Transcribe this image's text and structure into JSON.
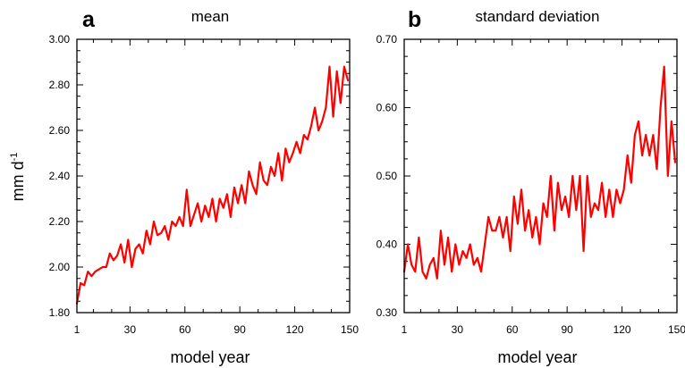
{
  "y_axis_label": {
    "main": "mm d",
    "sup": "-1"
  },
  "chart_data": [
    {
      "type": "line",
      "panel": "a",
      "title": "mean",
      "xlabel": "model year",
      "ylabel": "mm d-1",
      "xlim": [
        1,
        150
      ],
      "ylim": [
        1.8,
        3.0
      ],
      "xticks": [
        1,
        30,
        60,
        90,
        120,
        150
      ],
      "yticks": [
        1.8,
        2.0,
        2.2,
        2.4,
        2.6,
        2.8,
        3.0
      ],
      "ytick_labels": [
        "1.80",
        "2.00",
        "2.20",
        "2.40",
        "2.60",
        "2.80",
        "3.00"
      ],
      "color": "#ff0000",
      "x": [
        1,
        3,
        5,
        7,
        9,
        11,
        13,
        15,
        17,
        19,
        21,
        23,
        25,
        27,
        29,
        31,
        33,
        35,
        37,
        39,
        41,
        43,
        45,
        47,
        49,
        51,
        53,
        55,
        57,
        59,
        61,
        63,
        65,
        67,
        69,
        71,
        73,
        75,
        77,
        79,
        81,
        83,
        85,
        87,
        89,
        91,
        93,
        95,
        97,
        99,
        101,
        103,
        105,
        107,
        109,
        111,
        113,
        115,
        117,
        119,
        121,
        123,
        125,
        127,
        129,
        131,
        133,
        135,
        137,
        139,
        141,
        143,
        145,
        147,
        149
      ],
      "values": [
        1.84,
        1.93,
        1.92,
        1.98,
        1.96,
        1.98,
        1.99,
        2.0,
        2.0,
        2.06,
        2.03,
        2.05,
        2.1,
        2.02,
        2.12,
        2.0,
        2.08,
        2.1,
        2.06,
        2.16,
        2.1,
        2.2,
        2.14,
        2.15,
        2.18,
        2.12,
        2.2,
        2.18,
        2.22,
        2.18,
        2.34,
        2.18,
        2.23,
        2.28,
        2.2,
        2.27,
        2.22,
        2.3,
        2.2,
        2.3,
        2.26,
        2.32,
        2.22,
        2.35,
        2.28,
        2.36,
        2.28,
        2.42,
        2.36,
        2.32,
        2.46,
        2.38,
        2.36,
        2.44,
        2.4,
        2.5,
        2.38,
        2.52,
        2.46,
        2.5,
        2.55,
        2.5,
        2.58,
        2.56,
        2.62,
        2.7,
        2.6,
        2.64,
        2.7,
        2.88,
        2.66,
        2.86,
        2.72,
        2.88,
        2.82
      ]
    },
    {
      "type": "line",
      "panel": "b",
      "title": "standard deviation",
      "xlabel": "model year",
      "xlim": [
        1,
        150
      ],
      "ylim": [
        0.3,
        0.7
      ],
      "xticks": [
        1,
        30,
        60,
        90,
        120,
        150
      ],
      "yticks": [
        0.3,
        0.4,
        0.5,
        0.6,
        0.7
      ],
      "ytick_labels": [
        "0.30",
        "0.40",
        "0.50",
        "0.60",
        "0.70"
      ],
      "color": "#ff0000",
      "x": [
        1,
        3,
        5,
        7,
        9,
        11,
        13,
        15,
        17,
        19,
        21,
        23,
        25,
        27,
        29,
        31,
        33,
        35,
        37,
        39,
        41,
        43,
        45,
        47,
        49,
        51,
        53,
        55,
        57,
        59,
        61,
        63,
        65,
        67,
        69,
        71,
        73,
        75,
        77,
        79,
        81,
        83,
        85,
        87,
        89,
        91,
        93,
        95,
        97,
        99,
        101,
        103,
        105,
        107,
        109,
        111,
        113,
        115,
        117,
        119,
        121,
        123,
        125,
        127,
        129,
        131,
        133,
        135,
        137,
        139,
        141,
        143,
        145,
        147,
        149
      ],
      "values": [
        0.36,
        0.4,
        0.37,
        0.36,
        0.41,
        0.36,
        0.35,
        0.37,
        0.38,
        0.35,
        0.42,
        0.37,
        0.41,
        0.36,
        0.4,
        0.37,
        0.39,
        0.38,
        0.4,
        0.37,
        0.38,
        0.36,
        0.4,
        0.44,
        0.42,
        0.42,
        0.44,
        0.41,
        0.44,
        0.39,
        0.47,
        0.43,
        0.48,
        0.42,
        0.45,
        0.41,
        0.44,
        0.4,
        0.46,
        0.44,
        0.5,
        0.42,
        0.49,
        0.45,
        0.47,
        0.44,
        0.5,
        0.45,
        0.5,
        0.39,
        0.5,
        0.44,
        0.46,
        0.45,
        0.49,
        0.44,
        0.48,
        0.44,
        0.48,
        0.46,
        0.48,
        0.53,
        0.49,
        0.56,
        0.58,
        0.53,
        0.56,
        0.53,
        0.56,
        0.51,
        0.6,
        0.66,
        0.5,
        0.58,
        0.52
      ]
    }
  ]
}
